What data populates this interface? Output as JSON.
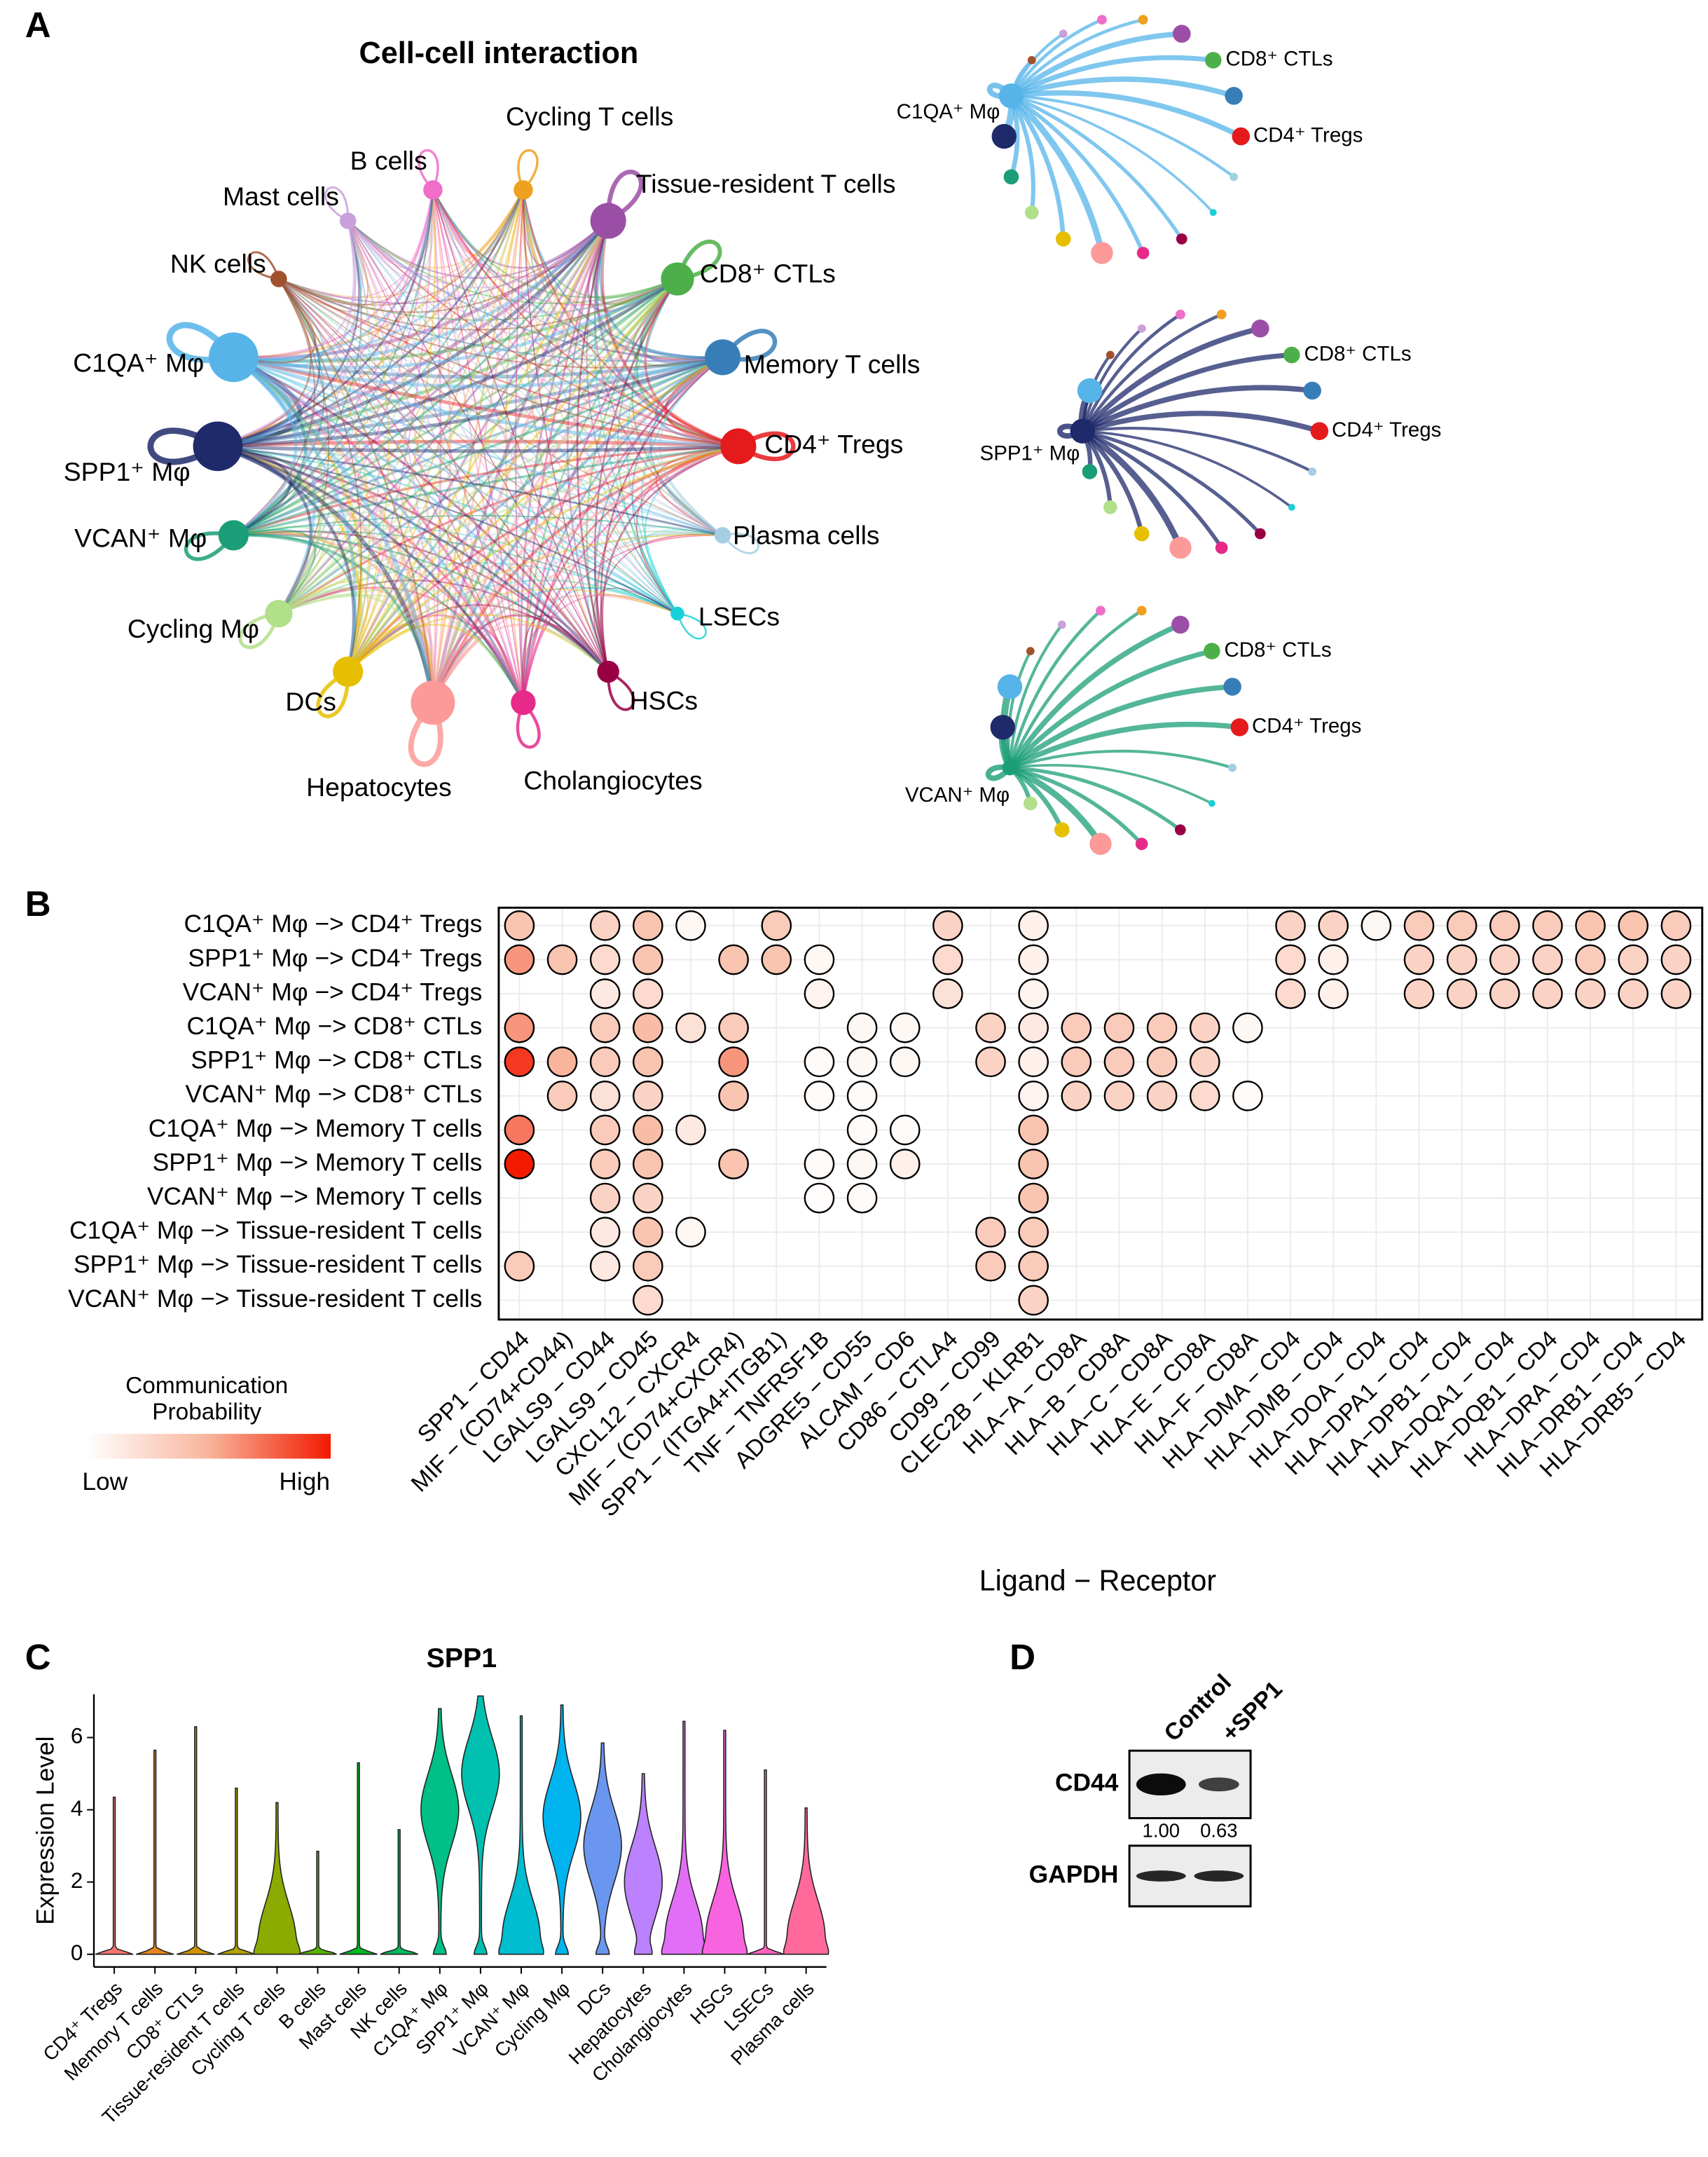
{
  "chart_data": [
    {
      "type": "network",
      "label": "A",
      "title": "Cell-cell interaction",
      "nodes": [
        {
          "name": "B cells",
          "color": "#f06ec8",
          "size": 7
        },
        {
          "name": "Cycling T cells",
          "color": "#f0a020",
          "size": 7
        },
        {
          "name": "Tissue-resident T cells",
          "color": "#9b4ea6",
          "size": 13
        },
        {
          "name": "CD8⁺ CTLs",
          "color": "#4daf4a",
          "size": 12
        },
        {
          "name": "Memory T cells",
          "color": "#377eb8",
          "size": 13
        },
        {
          "name": "CD4⁺ Tregs",
          "color": "#e41a1c",
          "size": 13
        },
        {
          "name": "Plasma cells",
          "color": "#a6cee3",
          "size": 6
        },
        {
          "name": "LSECs",
          "color": "#1ad0d8",
          "size": 5
        },
        {
          "name": "HSCs",
          "color": "#990044",
          "size": 8
        },
        {
          "name": "Cholangiocytes",
          "color": "#e7298a",
          "size": 9
        },
        {
          "name": "Hepatocytes",
          "color": "#fb9a99",
          "size": 16
        },
        {
          "name": "DCs",
          "color": "#e6c000",
          "size": 11
        },
        {
          "name": "Cycling Mφ",
          "color": "#b2df8a",
          "size": 10
        },
        {
          "name": "VCAN⁺ Mφ",
          "color": "#1b9e77",
          "size": 11
        },
        {
          "name": "SPP1⁺ Mφ",
          "color": "#1f2a6b",
          "size": 18
        },
        {
          "name": "C1QA⁺ Mφ",
          "color": "#56b4e9",
          "size": 18
        },
        {
          "name": "NK cells",
          "color": "#a0522d",
          "size": 6
        },
        {
          "name": "Mast cells",
          "color": "#c9a0dc",
          "size": 6
        }
      ]
    },
    {
      "type": "dotplot",
      "label": "B",
      "xlabel": "Ligand − Receptor",
      "legend_title": [
        "Communication",
        "Probability"
      ],
      "legend_low": "Low",
      "legend_high": "High",
      "colors": [
        "#ffffff",
        "#f8b59c",
        "#f21a00"
      ],
      "grid": true,
      "rows": [
        "C1QA⁺ Mφ −> CD4⁺ Tregs",
        "SPP1⁺ Mφ −> CD4⁺ Tregs",
        "VCAN⁺ Mφ −> CD4⁺ Tregs",
        "C1QA⁺ Mφ −> CD8⁺ CTLs",
        "SPP1⁺ Mφ −> CD8⁺ CTLs",
        "VCAN⁺ Mφ −> CD8⁺ CTLs",
        "C1QA⁺ Mφ −> Memory T cells",
        "SPP1⁺ Mφ −> Memory T cells",
        "VCAN⁺ Mφ −> Memory T cells",
        "C1QA⁺ Mφ −> Tissue-resident T cells",
        "SPP1⁺ Mφ −> Tissue-resident T cells",
        "VCAN⁺ Mφ −> Tissue-resident T cells"
      ],
      "columns": [
        "SPP1 − CD44",
        "MIF − (CD74+CD44)",
        "LGALS9 − CD44",
        "LGALS9 − CD45",
        "CXCL12 − CXCR4",
        "MIF − (CD74+CXCR4)",
        "SPP1 − (ITGA4+ITGB1)",
        "TNF − TNFRSF1B",
        "ADGRE5 − CD55",
        "ALCAM − CD6",
        "CD86 − CTLA4",
        "CD99 − CD99",
        "CLEC2B − KLRB1",
        "HLA−A − CD8A",
        "HLA−B − CD8A",
        "HLA−C − CD8A",
        "HLA−E − CD8A",
        "HLA−F − CD8A",
        "HLA−DMA − CD4",
        "HLA−DMB − CD4",
        "HLA−DOA − CD4",
        "HLA−DPA1 − CD4",
        "HLA−DPB1 − CD4",
        "HLA−DQA1 − CD4",
        "HLA−DQB1 − CD4",
        "HLA−DRA − CD4",
        "HLA−DRB1 − CD4",
        "HLA−DRB5 − CD4"
      ],
      "values": [
        [
          0.4,
          null,
          0.3,
          0.4,
          0.05,
          null,
          0.35,
          null,
          null,
          null,
          0.3,
          null,
          0.1,
          null,
          null,
          null,
          null,
          null,
          0.3,
          0.3,
          0.05,
          0.35,
          0.35,
          0.35,
          0.35,
          0.4,
          0.4,
          0.35
        ],
        [
          0.6,
          0.4,
          0.25,
          0.4,
          null,
          0.4,
          0.4,
          0.05,
          null,
          null,
          0.25,
          null,
          0.1,
          null,
          null,
          null,
          null,
          null,
          0.25,
          0.1,
          null,
          0.3,
          0.3,
          0.3,
          0.3,
          0.35,
          0.3,
          0.3
        ],
        [
          null,
          null,
          0.15,
          0.25,
          null,
          null,
          null,
          0.08,
          null,
          null,
          0.2,
          null,
          0.08,
          null,
          null,
          null,
          null,
          null,
          0.25,
          0.1,
          null,
          0.3,
          0.3,
          0.3,
          0.3,
          0.3,
          0.3,
          0.3
        ],
        [
          0.6,
          null,
          0.35,
          0.45,
          0.2,
          0.35,
          null,
          null,
          0.05,
          0.05,
          null,
          0.3,
          0.15,
          0.35,
          0.35,
          0.35,
          0.3,
          0.05,
          null,
          null,
          null,
          null,
          null,
          null,
          null,
          null,
          null,
          null
        ],
        [
          0.9,
          0.5,
          0.35,
          0.4,
          null,
          0.6,
          null,
          0.03,
          0.05,
          0.05,
          null,
          0.3,
          0.1,
          0.35,
          0.35,
          0.35,
          0.3,
          null,
          null,
          null,
          null,
          null,
          null,
          null,
          null,
          null,
          null,
          null
        ],
        [
          null,
          0.35,
          0.2,
          0.3,
          null,
          0.4,
          null,
          0.03,
          0.03,
          null,
          null,
          null,
          0.08,
          0.3,
          0.3,
          0.3,
          0.25,
          0.03,
          null,
          null,
          null,
          null,
          null,
          null,
          null,
          null,
          null,
          null
        ],
        [
          0.7,
          null,
          0.35,
          0.45,
          0.15,
          null,
          null,
          null,
          0.03,
          0.03,
          null,
          null,
          0.4,
          null,
          null,
          null,
          null,
          null,
          null,
          null,
          null,
          null,
          null,
          null,
          null,
          null,
          null,
          null
        ],
        [
          1,
          null,
          0.35,
          0.4,
          null,
          0.4,
          null,
          0.03,
          0.05,
          0.1,
          null,
          null,
          0.4,
          null,
          null,
          null,
          null,
          null,
          null,
          null,
          null,
          null,
          null,
          null,
          null,
          null,
          null,
          null
        ],
        [
          null,
          null,
          0.3,
          0.3,
          null,
          null,
          null,
          0.02,
          0.03,
          null,
          null,
          null,
          0.4,
          null,
          null,
          null,
          null,
          null,
          null,
          null,
          null,
          null,
          null,
          null,
          null,
          null,
          null,
          null
        ],
        [
          null,
          null,
          0.15,
          0.4,
          0.05,
          null,
          null,
          null,
          null,
          null,
          null,
          0.35,
          0.35,
          null,
          null,
          null,
          null,
          null,
          null,
          null,
          null,
          null,
          null,
          null,
          null,
          null,
          null,
          null
        ],
        [
          0.35,
          null,
          0.15,
          0.35,
          null,
          null,
          null,
          null,
          null,
          null,
          null,
          0.35,
          0.35,
          null,
          null,
          null,
          null,
          null,
          null,
          null,
          null,
          null,
          null,
          null,
          null,
          null,
          null,
          null
        ],
        [
          null,
          null,
          null,
          0.25,
          null,
          null,
          null,
          null,
          null,
          null,
          null,
          null,
          0.3,
          null,
          null,
          null,
          null,
          null,
          null,
          null,
          null,
          null,
          null,
          null,
          null,
          null,
          null,
          null
        ]
      ]
    },
    {
      "type": "violin",
      "label": "C",
      "title": "SPP1",
      "ylabel": "Expression Level",
      "categories": [
        "CD4⁺ Tregs",
        "Memory T cells",
        "CD8⁺ CTLs",
        "Tissue-resident T cells",
        "Cycling T cells",
        "B cells",
        "Mast cells",
        "NK cells",
        "C1QA⁺ Mφ",
        "SPP1⁺ Mφ",
        "VCAN⁺ Mφ",
        "Cycling Mφ",
        "DCs",
        "Hepatocytes",
        "Cholangiocytes",
        "HSCs",
        "LSECs",
        "Plasma cells"
      ],
      "colors": [
        "#F8766D",
        "#E7851E",
        "#D09400",
        "#B2A100",
        "#8BAB00",
        "#55B300",
        "#00B81F",
        "#00BC59",
        "#00BF87",
        "#00C0AF",
        "#00BDD2",
        "#00B4EF",
        "#6A96F0",
        "#BC81FF",
        "#E26EF7",
        "#F863DF",
        "#FF62BF",
        "#FF6A9A"
      ],
      "max": [
        4.35,
        5.65,
        6.3,
        4.6,
        4.2,
        2.85,
        5.3,
        3.45,
        6.8,
        7.15,
        6.6,
        6.9,
        5.85,
        5.0,
        6.45,
        6.2,
        5.1,
        4.05
      ],
      "median": [
        0,
        0,
        0,
        0,
        0.4,
        0,
        0,
        0,
        4,
        5,
        0.5,
        3.8,
        3,
        2,
        0.5,
        0.5,
        0,
        0.5
      ],
      "ylim": [
        -0.35,
        7.2
      ],
      "yticks": [
        0,
        2,
        4,
        6
      ]
    },
    {
      "type": "blot",
      "label": "D",
      "lanes": [
        "Control",
        "+SPP1"
      ],
      "bands": [
        {
          "name": "CD44",
          "values": [
            1.0,
            0.63
          ],
          "value_labels": [
            "1.00",
            "0.63"
          ]
        },
        {
          "name": "GAPDH"
        }
      ]
    }
  ]
}
